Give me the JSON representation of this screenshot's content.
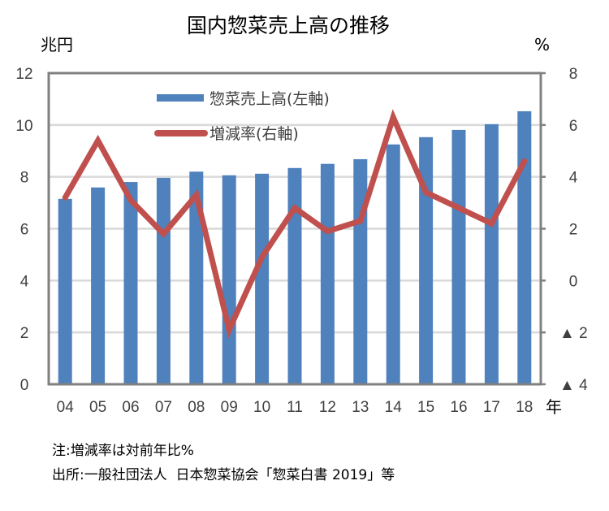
{
  "chart_data": {
    "type": "bar+line",
    "title": "国内惣菜売上高の推移",
    "categories": [
      "04",
      "05",
      "06",
      "07",
      "08",
      "09",
      "10",
      "11",
      "12",
      "13",
      "14",
      "15",
      "16",
      "17",
      "18"
    ],
    "x_unit_label": "年",
    "left_axis": {
      "unit_label": "兆円",
      "ylim": [
        0,
        12
      ],
      "ticks": [
        "0",
        "2",
        "4",
        "6",
        "8",
        "10",
        "12"
      ]
    },
    "right_axis": {
      "unit_label": "%",
      "ylim": [
        -4,
        8
      ],
      "ticks": [
        "▲ 4",
        "▲ 2",
        "0",
        "2",
        "4",
        "6",
        "8"
      ]
    },
    "series": [
      {
        "name": "惣菜売上高(左軸)",
        "type": "bar",
        "axis": "left",
        "color": "#4F81BD",
        "values": [
          7.15,
          7.59,
          7.8,
          7.96,
          8.2,
          8.06,
          8.12,
          8.34,
          8.5,
          8.68,
          9.25,
          9.53,
          9.81,
          10.03,
          10.53
        ]
      },
      {
        "name": "増減率(右軸)",
        "type": "line",
        "axis": "right",
        "color": "#C0504D",
        "values": [
          3.2,
          5.4,
          3.1,
          1.8,
          3.3,
          -1.9,
          0.9,
          2.8,
          1.9,
          2.3,
          6.3,
          3.4,
          2.8,
          2.2,
          4.6
        ]
      }
    ],
    "grid": true,
    "legend_position": "top-center-inside"
  },
  "notes": {
    "note": "注:増減率は対前年比%",
    "source": "出所:一般社団法人  日本惣菜協会「惣菜白書 2019」等"
  }
}
